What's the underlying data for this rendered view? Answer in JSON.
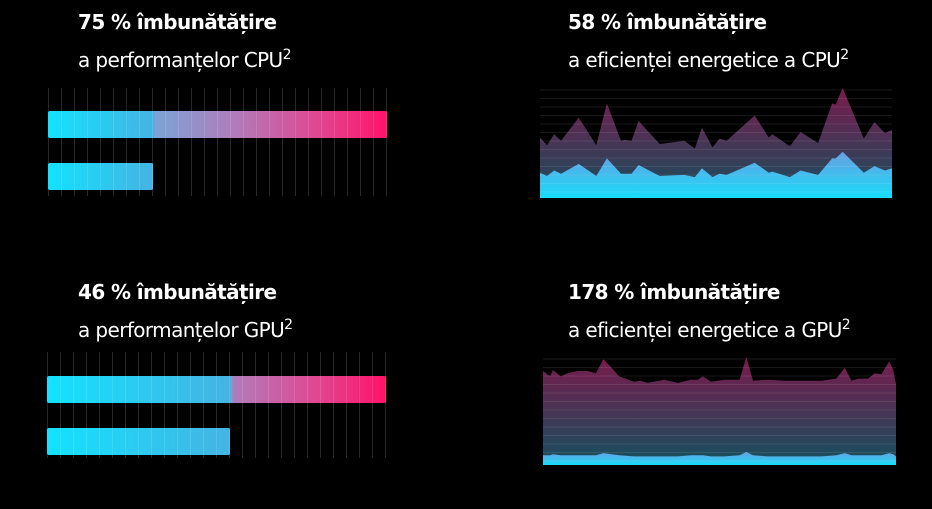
{
  "panels": [
    {
      "headline": "75 % îmbunătățire",
      "subtitle": "a performanțelor CPU",
      "sup": "2"
    },
    {
      "headline": "58 % îmbunătățire",
      "subtitle": "a eficienței energetice a CPU",
      "sup": "2"
    },
    {
      "headline": "46 % îmbunătățire",
      "subtitle": "a performanțelor GPU",
      "sup": "2"
    },
    {
      "headline": "178 % îmbunătățire",
      "subtitle": "a eficienței energetice a GPU",
      "sup": "2"
    }
  ],
  "colors": {
    "cyan": "#12e2ff",
    "pink": "#ff1269",
    "purple_area": "#7a1a4c",
    "background": "#000000"
  },
  "chart_data": [
    {
      "type": "bar",
      "orientation": "horizontal",
      "values": [
        1.0,
        0.31
      ],
      "note_fill": "relative bar lengths",
      "grid": true
    },
    {
      "type": "area",
      "grid": true,
      "x": [
        0,
        2,
        4,
        6,
        11,
        16,
        19,
        23,
        24,
        26,
        28,
        34,
        41,
        44,
        46,
        49,
        51,
        53,
        61,
        65,
        66,
        71,
        74,
        79,
        83,
        84,
        86,
        92,
        95,
        98,
        100
      ],
      "series": [
        {
          "values": [
            55,
            48,
            58,
            52,
            73,
            48,
            86,
            52,
            53,
            52,
            70,
            49,
            52,
            45,
            64,
            46,
            54,
            52,
            75,
            55,
            58,
            47,
            60,
            50,
            86,
            85,
            100,
            54,
            69,
            59,
            62
          ]
        },
        {
          "values": [
            23,
            20,
            25,
            22,
            31,
            20,
            36,
            22,
            22,
            22,
            30,
            20,
            21,
            19,
            27,
            19,
            22,
            21,
            32,
            23,
            24,
            19,
            25,
            21,
            36,
            36,
            42,
            23,
            29,
            25,
            27
          ]
        }
      ]
    },
    {
      "type": "bar",
      "orientation": "horizontal",
      "values": [
        1.0,
        0.54
      ],
      "grid": true
    },
    {
      "type": "area",
      "grid": true,
      "x": [
        0,
        2,
        2.8,
        5,
        7,
        9.8,
        12.6,
        15,
        17.1,
        19.4,
        21.6,
        25.8,
        27.7,
        29.6,
        34.4,
        38.2,
        41.9,
        43.8,
        45.3,
        47.6,
        51.4,
        55.7,
        57.6,
        59.5,
        63.7,
        68.5,
        73.2,
        78.9,
        83.1,
        85.5,
        87.4,
        89.3,
        92.1,
        94,
        95.9,
        98.1,
        99.2,
        100
      ],
      "series": [
        {
          "values": [
            87,
            82,
            88,
            82,
            85,
            87,
            87,
            85,
            98,
            90,
            82,
            77,
            78,
            76,
            79,
            76,
            79,
            79,
            82,
            77,
            79,
            79,
            100,
            78,
            79,
            78,
            78,
            78,
            80,
            90,
            78,
            80,
            80,
            85,
            84,
            96,
            88,
            75
          ]
        },
        {
          "values": [
            9,
            9,
            10,
            9,
            9,
            9,
            9,
            9,
            11,
            10,
            9,
            8,
            8,
            8,
            8,
            8,
            9,
            9,
            9,
            8,
            8,
            9,
            12,
            9,
            8,
            8,
            8,
            8,
            9,
            11,
            9,
            9,
            9,
            9,
            9,
            11,
            10,
            8
          ]
        }
      ]
    }
  ]
}
